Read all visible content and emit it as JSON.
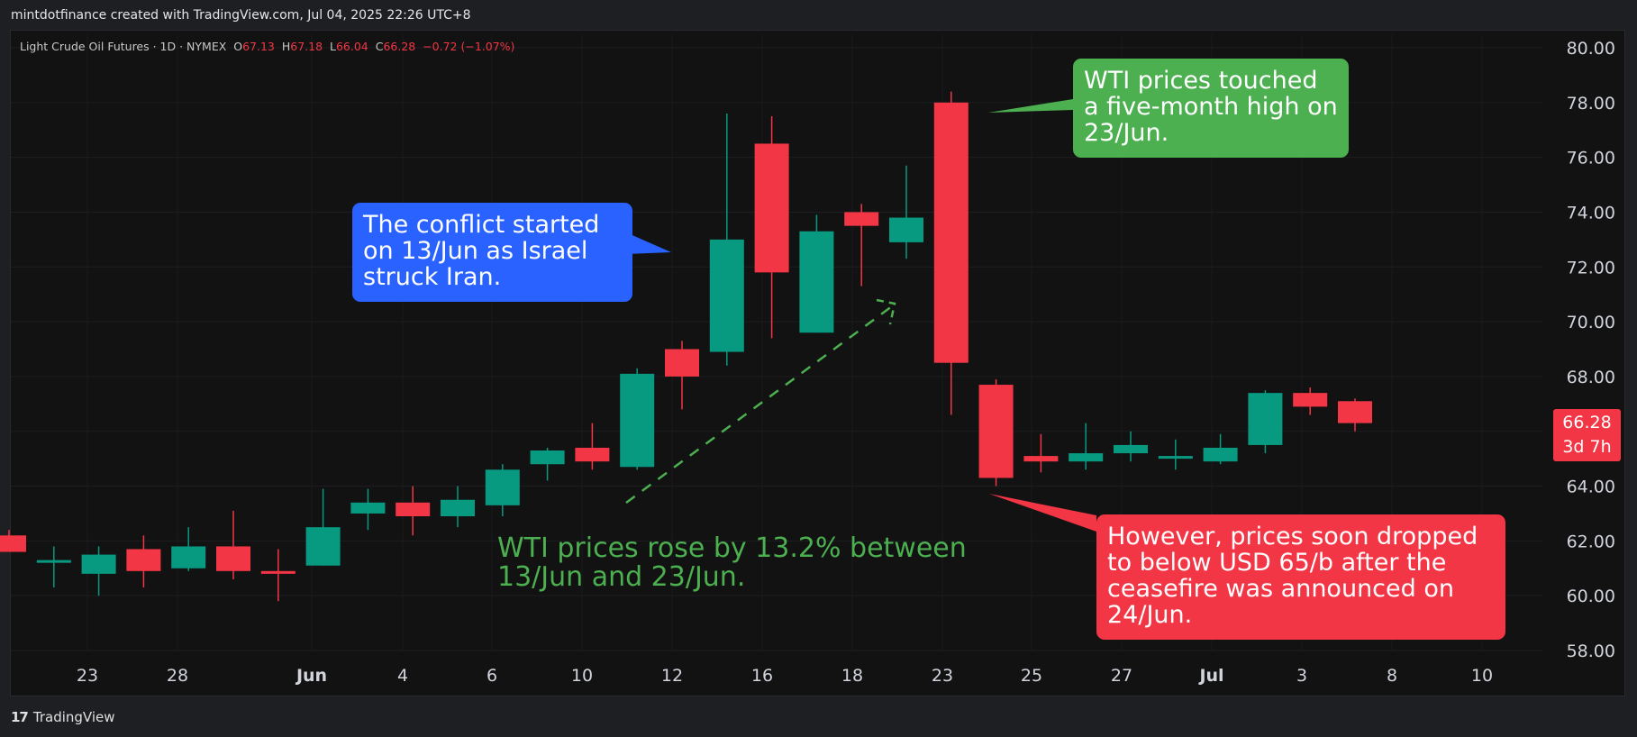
{
  "header": {
    "credit": "mintdotfinance created with TradingView.com, Jul 04, 2025 22:26 UTC+8"
  },
  "legend": {
    "symbol": "Light Crude Oil Futures · 1D · NYMEX",
    "open_label": "O",
    "open": "67.13",
    "high_label": "H",
    "high": "67.18",
    "low_label": "L",
    "low": "66.04",
    "close_label": "C",
    "close": "66.28",
    "change": "−0.72 (−1.07%)"
  },
  "price_tag": {
    "price": "66.28",
    "countdown": "3d 7h"
  },
  "footer": {
    "brand": "TradingView"
  },
  "annotations": {
    "conflict": "The conflict started on 13/Jun as Israel struck Iran.",
    "high": "WTI prices touched a five-month high on 23/Jun.",
    "rise": "WTI prices rose by 13.2% between 13/Jun and 23/Jun.",
    "drop": "However, prices soon dropped to below USD 65/b after the ceasefire was announced on 24/Jun."
  },
  "colors": {
    "up": "#089981",
    "down": "#f23645",
    "background": "#121212",
    "blue_callout": "#2962ff",
    "green_callout": "#4caf50",
    "red_callout": "#f23645"
  },
  "chart_data": {
    "type": "candlestick",
    "ylim": [
      58,
      80
    ],
    "y_ticks": [
      "58.00",
      "60.00",
      "62.00",
      "64.00",
      "66.00",
      "68.00",
      "70.00",
      "72.00",
      "74.00",
      "76.00",
      "78.00",
      "80.00"
    ],
    "x_ticks": [
      "23",
      "28",
      "Jun",
      "4",
      "6",
      "10",
      "12",
      "16",
      "18",
      "23",
      "25",
      "27",
      "Jul",
      "3",
      "8",
      "10"
    ],
    "candles": [
      {
        "o": 62.2,
        "h": 62.4,
        "l": 61.6,
        "c": 61.6
      },
      {
        "o": 61.3,
        "h": 61.8,
        "l": 60.3,
        "c": 61.3
      },
      {
        "o": 60.8,
        "h": 61.8,
        "l": 60.0,
        "c": 61.5
      },
      {
        "o": 61.7,
        "h": 62.2,
        "l": 60.3,
        "c": 60.9
      },
      {
        "o": 61.0,
        "h": 62.5,
        "l": 60.9,
        "c": 61.8
      },
      {
        "o": 61.8,
        "h": 63.1,
        "l": 60.6,
        "c": 60.9
      },
      {
        "o": 60.9,
        "h": 61.7,
        "l": 59.8,
        "c": 60.8
      },
      {
        "o": 61.1,
        "h": 63.9,
        "l": 61.1,
        "c": 62.5
      },
      {
        "o": 63.0,
        "h": 63.9,
        "l": 62.4,
        "c": 63.4
      },
      {
        "o": 63.4,
        "h": 64.0,
        "l": 62.2,
        "c": 62.9
      },
      {
        "o": 62.9,
        "h": 64.0,
        "l": 62.5,
        "c": 63.5
      },
      {
        "o": 63.3,
        "h": 64.8,
        "l": 62.9,
        "c": 64.6
      },
      {
        "o": 64.8,
        "h": 65.4,
        "l": 64.2,
        "c": 65.3
      },
      {
        "o": 65.4,
        "h": 66.3,
        "l": 64.6,
        "c": 64.9
      },
      {
        "o": 64.7,
        "h": 68.3,
        "l": 64.6,
        "c": 68.1
      },
      {
        "o": 69.0,
        "h": 69.3,
        "l": 66.8,
        "c": 68.0
      },
      {
        "o": 68.9,
        "h": 77.6,
        "l": 68.4,
        "c": 73.0
      },
      {
        "o": 76.5,
        "h": 77.5,
        "l": 69.4,
        "c": 71.8
      },
      {
        "o": 69.6,
        "h": 73.9,
        "l": 69.6,
        "c": 73.3
      },
      {
        "o": 74.0,
        "h": 74.3,
        "l": 71.3,
        "c": 73.5
      },
      {
        "o": 72.9,
        "h": 75.7,
        "l": 72.3,
        "c": 73.8
      },
      {
        "o": 78.0,
        "h": 78.4,
        "l": 66.6,
        "c": 68.5
      },
      {
        "o": 67.7,
        "h": 67.9,
        "l": 64.0,
        "c": 64.3
      },
      {
        "o": 65.1,
        "h": 65.9,
        "l": 64.5,
        "c": 64.9
      },
      {
        "o": 64.9,
        "h": 66.3,
        "l": 64.6,
        "c": 65.2
      },
      {
        "o": 65.2,
        "h": 66.0,
        "l": 64.9,
        "c": 65.5
      },
      {
        "o": 65.1,
        "h": 65.7,
        "l": 64.6,
        "c": 65.1
      },
      {
        "o": 64.9,
        "h": 65.9,
        "l": 64.8,
        "c": 65.4
      },
      {
        "o": 65.5,
        "h": 67.5,
        "l": 65.2,
        "c": 67.4
      },
      {
        "o": 67.4,
        "h": 67.6,
        "l": 66.6,
        "c": 66.9
      },
      {
        "o": 67.1,
        "h": 67.2,
        "l": 66.0,
        "c": 66.3
      }
    ]
  }
}
